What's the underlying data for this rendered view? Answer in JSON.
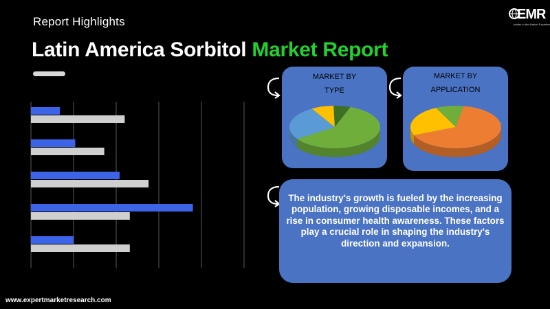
{
  "header": {
    "eyebrow": "Report Highlights",
    "title_white": "Latin America Sorbitol ",
    "title_accent": "Market Report",
    "accent_color": "#22d12e"
  },
  "logo": {
    "wordmark": "EMR",
    "tagline": "Leader in the Market Expertise"
  },
  "type_card": {
    "line1": "MARKET BY",
    "line2": "TYPE"
  },
  "application_card": {
    "line1": "MARKET BY",
    "line2": "APPLICATION"
  },
  "summary": {
    "text": "The industry's growth is fueled by the increasing population, growing disposable incomes, and a rise in consumer health awareness. These factors play a crucial role in shaping the industry's direction and expansion."
  },
  "footer": {
    "url": "www.expertmarketresearch.com"
  },
  "chart_data": [
    {
      "type": "bar",
      "orientation": "horizontal",
      "series": [
        {
          "color": "#3d63e8",
          "values": [
            0.17,
            0.26,
            0.52,
            0.95,
            0.25
          ]
        },
        {
          "color": "#cfcfcf",
          "values": [
            0.55,
            0.43,
            0.69,
            0.58,
            0.58
          ]
        }
      ],
      "xlim": [
        0,
        1.25
      ],
      "grid": true
    },
    {
      "type": "pie",
      "values": [
        0.6,
        0.26,
        0.08,
        0.06
      ],
      "colors": [
        "#6fae3b",
        "#5b9bd5",
        "#ffc000",
        "#3f6f22"
      ]
    },
    {
      "type": "pie",
      "values": [
        0.66,
        0.24,
        0.1
      ],
      "colors": [
        "#ed7d31",
        "#ffc000",
        "#6fae3b"
      ]
    }
  ]
}
